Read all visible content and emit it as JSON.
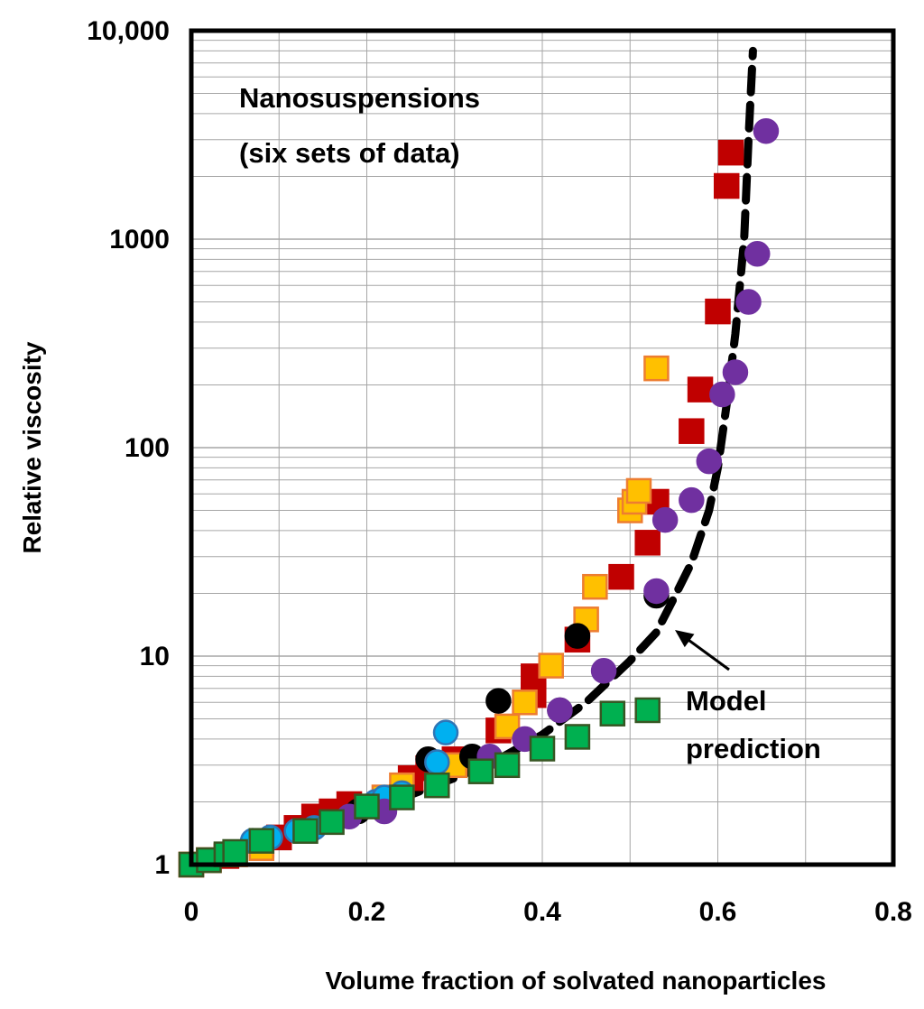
{
  "chart_data": {
    "type": "scatter",
    "title": "",
    "xlabel": "Volume fraction of solvated nanoparticles",
    "ylabel": "Relative viscosity",
    "xlim": [
      0,
      0.8
    ],
    "ylim": [
      1,
      10000
    ],
    "yscale": "log",
    "grid": true,
    "x_ticks": [
      {
        "value": 0,
        "label": "0"
      },
      {
        "value": 0.2,
        "label": "0.2"
      },
      {
        "value": 0.4,
        "label": "0.4"
      },
      {
        "value": 0.6,
        "label": "0.6"
      },
      {
        "value": 0.8,
        "label": "0.8"
      }
    ],
    "y_ticks": [
      {
        "value": 1,
        "label": "1"
      },
      {
        "value": 10,
        "label": "10"
      },
      {
        "value": 100,
        "label": "100"
      },
      {
        "value": 1000,
        "label": "1000"
      },
      {
        "value": 10000,
        "label": "10,000"
      }
    ],
    "annotations": {
      "title_line1": "Nanosuspensions",
      "title_line2": "(six sets of data)",
      "model_line1": "Model",
      "model_line2": "prediction"
    },
    "series": [
      {
        "marker": "square",
        "color": "#c00000",
        "edge": "#c00000",
        "points": [
          [
            0.0,
            1.0
          ],
          [
            0.02,
            1.05
          ],
          [
            0.04,
            1.1
          ],
          [
            0.08,
            1.25
          ],
          [
            0.1,
            1.35
          ],
          [
            0.12,
            1.5
          ],
          [
            0.14,
            1.7
          ],
          [
            0.16,
            1.8
          ],
          [
            0.18,
            1.95
          ],
          [
            0.25,
            2.6
          ],
          [
            0.27,
            2.9
          ],
          [
            0.3,
            3.2
          ],
          [
            0.35,
            4.4
          ],
          [
            0.39,
            6.5
          ],
          [
            0.39,
            8.0
          ],
          [
            0.44,
            12.0
          ],
          [
            0.49,
            24.0
          ],
          [
            0.52,
            35.0
          ],
          [
            0.53,
            55.0
          ],
          [
            0.57,
            120.0
          ],
          [
            0.58,
            190.0
          ],
          [
            0.6,
            450.0
          ],
          [
            0.61,
            1800.0
          ],
          [
            0.615,
            2600.0
          ]
        ]
      },
      {
        "marker": "square",
        "color": "#ffc000",
        "edge": "#ed7d31",
        "points": [
          [
            0.0,
            1.0
          ],
          [
            0.02,
            1.05
          ],
          [
            0.05,
            1.12
          ],
          [
            0.08,
            1.2
          ],
          [
            0.22,
            2.1
          ],
          [
            0.24,
            2.4
          ],
          [
            0.3,
            3.0
          ],
          [
            0.36,
            4.6
          ],
          [
            0.38,
            6.0
          ],
          [
            0.41,
            9.0
          ],
          [
            0.45,
            15.0
          ],
          [
            0.46,
            21.5
          ],
          [
            0.5,
            50.0
          ],
          [
            0.505,
            55.0
          ],
          [
            0.51,
            62.0
          ],
          [
            0.53,
            240.0
          ]
        ]
      },
      {
        "marker": "circle",
        "color": "#000000",
        "edge": "#000000",
        "points": [
          [
            0.19,
            1.8
          ],
          [
            0.27,
            3.2
          ],
          [
            0.32,
            3.3
          ],
          [
            0.35,
            6.1
          ],
          [
            0.42,
            5.5
          ],
          [
            0.44,
            12.5
          ],
          [
            0.53,
            19.5
          ]
        ]
      },
      {
        "marker": "circle",
        "color": "#00b0f0",
        "edge": "#2e75b6",
        "points": [
          [
            0.07,
            1.3
          ],
          [
            0.09,
            1.35
          ],
          [
            0.12,
            1.45
          ],
          [
            0.14,
            1.5
          ],
          [
            0.21,
            2.0
          ],
          [
            0.22,
            2.1
          ],
          [
            0.24,
            2.2
          ],
          [
            0.28,
            3.1
          ],
          [
            0.29,
            4.3
          ]
        ]
      },
      {
        "marker": "circle",
        "color": "#7030a0",
        "edge": "#7030a0",
        "points": [
          [
            0.18,
            1.7
          ],
          [
            0.22,
            1.8
          ],
          [
            0.34,
            3.3
          ],
          [
            0.38,
            4.0
          ],
          [
            0.42,
            5.5
          ],
          [
            0.47,
            8.5
          ],
          [
            0.53,
            20.5
          ],
          [
            0.54,
            45.0
          ],
          [
            0.57,
            56.0
          ],
          [
            0.59,
            86.0
          ],
          [
            0.605,
            180.0
          ],
          [
            0.62,
            230.0
          ],
          [
            0.635,
            500.0
          ],
          [
            0.645,
            850.0
          ],
          [
            0.655,
            3300.0
          ]
        ]
      },
      {
        "marker": "square",
        "color": "#00b050",
        "edge": "#375623",
        "points": [
          [
            0.0,
            1.0
          ],
          [
            0.02,
            1.05
          ],
          [
            0.04,
            1.12
          ],
          [
            0.05,
            1.15
          ],
          [
            0.08,
            1.3
          ],
          [
            0.13,
            1.45
          ],
          [
            0.16,
            1.6
          ],
          [
            0.2,
            1.9
          ],
          [
            0.24,
            2.1
          ],
          [
            0.28,
            2.4
          ],
          [
            0.33,
            2.8
          ],
          [
            0.36,
            3.0
          ],
          [
            0.4,
            3.6
          ],
          [
            0.44,
            4.1
          ],
          [
            0.48,
            5.3
          ],
          [
            0.52,
            5.5
          ]
        ]
      }
    ],
    "model_curve": {
      "style": "dashed",
      "color": "#000000",
      "points": [
        [
          0.0,
          1.0
        ],
        [
          0.1,
          1.3
        ],
        [
          0.2,
          1.8
        ],
        [
          0.3,
          2.6
        ],
        [
          0.35,
          3.2
        ],
        [
          0.4,
          4.2
        ],
        [
          0.45,
          6.0
        ],
        [
          0.5,
          9.5
        ],
        [
          0.53,
          13.0
        ],
        [
          0.55,
          19.0
        ],
        [
          0.57,
          28.0
        ],
        [
          0.59,
          50.0
        ],
        [
          0.6,
          80.0
        ],
        [
          0.61,
          160.0
        ],
        [
          0.62,
          350.0
        ],
        [
          0.63,
          1000.0
        ],
        [
          0.635,
          3000.0
        ],
        [
          0.64,
          8000.0
        ]
      ]
    }
  }
}
